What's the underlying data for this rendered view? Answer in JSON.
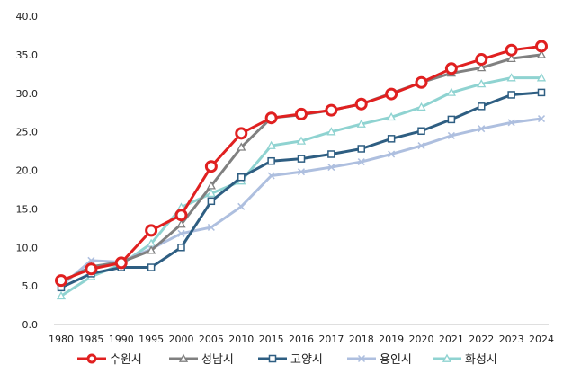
{
  "chart_data": {
    "type": "line",
    "title": "",
    "xlabel": "",
    "ylabel": "",
    "ylim": [
      0,
      40
    ],
    "yticks": [
      "0.0",
      "5.0",
      "10.0",
      "15.0",
      "20.0",
      "25.0",
      "30.0",
      "35.0",
      "40.0"
    ],
    "grid": false,
    "legend_position": "bottom",
    "categories": [
      "1980",
      "1985",
      "1990",
      "1995",
      "2000",
      "2005",
      "2010",
      "2015",
      "2016",
      "2017",
      "2018",
      "2019",
      "2020",
      "2021",
      "2022",
      "2023",
      "2024"
    ],
    "series": [
      {
        "name": "수원시",
        "color": "#e02020",
        "marker": "circle",
        "values": [
          5.7,
          7.2,
          8.0,
          12.2,
          14.2,
          20.5,
          24.8,
          26.8,
          27.3,
          27.8,
          28.6,
          29.9,
          31.4,
          33.2,
          34.4,
          35.6,
          36.1
        ]
      },
      {
        "name": "성남시",
        "color": "#808080",
        "marker": "triangle",
        "values": [
          5.5,
          7.5,
          8.1,
          9.6,
          13.0,
          18.0,
          23.0,
          26.8,
          27.2,
          27.8,
          28.6,
          30.0,
          31.4,
          32.6,
          33.3,
          34.5,
          35.0
        ]
      },
      {
        "name": "고양시",
        "color": "#2e5e82",
        "marker": "square",
        "values": [
          4.8,
          6.6,
          7.4,
          7.4,
          10.0,
          16.0,
          19.1,
          21.2,
          21.5,
          22.1,
          22.8,
          24.1,
          25.1,
          26.6,
          28.3,
          29.8,
          30.1
        ]
      },
      {
        "name": "용인시",
        "color": "#aebfdf",
        "marker": "cross",
        "values": [
          5.0,
          8.3,
          8.1,
          9.8,
          11.8,
          12.6,
          15.3,
          19.3,
          19.8,
          20.4,
          21.1,
          22.1,
          23.2,
          24.5,
          25.4,
          26.2,
          26.7
        ]
      },
      {
        "name": "화성시",
        "color": "#8fd3d1",
        "marker": "triangle",
        "values": [
          3.7,
          6.2,
          7.8,
          10.5,
          15.2,
          17.0,
          18.6,
          23.2,
          23.8,
          25.0,
          26.0,
          26.9,
          28.2,
          30.1,
          31.2,
          32.0,
          32.0
        ]
      }
    ]
  }
}
